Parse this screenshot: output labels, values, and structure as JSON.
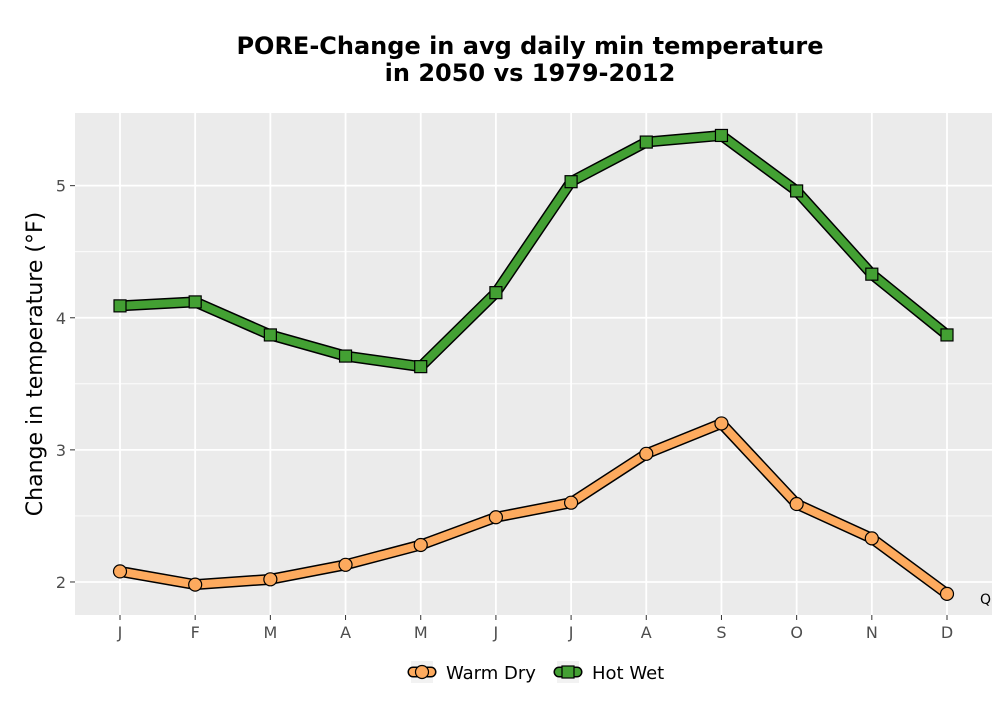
{
  "chart_data": {
    "type": "line",
    "title_line1": "PORE-Change in avg daily min temperature",
    "title_line2": "in 2050 vs 1979-2012",
    "xlabel": "",
    "ylabel": "Change in temperature (°F)",
    "categories": [
      "J",
      "F",
      "M",
      "A",
      "M",
      "J",
      "J",
      "A",
      "S",
      "O",
      "N",
      "D"
    ],
    "ylim": [
      1.75,
      5.55
    ],
    "yticks": [
      2,
      3,
      4,
      5
    ],
    "grid": true,
    "legend_position": "bottom",
    "series": [
      {
        "name": "Warm Dry",
        "marker": "circle",
        "color": "#FDAA5E",
        "values": [
          2.08,
          1.98,
          2.02,
          2.13,
          2.28,
          2.49,
          2.6,
          2.97,
          3.2,
          2.59,
          2.33,
          1.91
        ]
      },
      {
        "name": "Hot Wet",
        "marker": "square",
        "color": "#43A033",
        "values": [
          4.09,
          4.12,
          3.87,
          3.71,
          3.63,
          4.19,
          5.03,
          5.33,
          5.38,
          4.96,
          4.33,
          3.87
        ]
      }
    ],
    "corner_note": "Q"
  }
}
